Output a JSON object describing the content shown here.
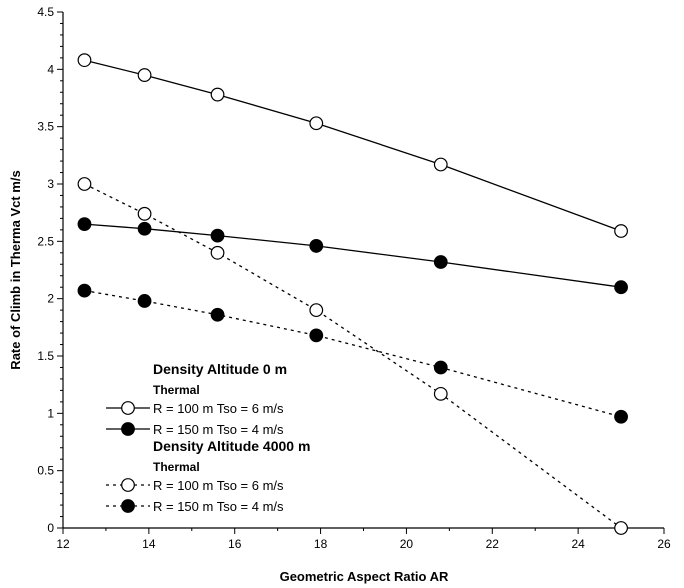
{
  "chart_data": {
    "type": "line",
    "xlabel": "Geometric Aspect Ratio AR",
    "ylabel": "Rate of Climb in Therma Vct  m/s",
    "xlim": [
      12,
      26
    ],
    "ylim": [
      0,
      4.5
    ],
    "xticks": [
      "12",
      "14",
      "16",
      "18",
      "20",
      "22",
      "24",
      "26"
    ],
    "yticks": [
      "0",
      "0.5",
      "1",
      "1.5",
      "2",
      "2.5",
      "3",
      "3.5",
      "4",
      "4.5"
    ],
    "grid": false,
    "legend_position": "lower-left",
    "series": [
      {
        "name": "R = 100 m Tso = 6 m/s",
        "group": 0,
        "marker": "open",
        "line": "solid",
        "x": [
          12.5,
          13.9,
          15.6,
          17.9,
          20.8,
          25
        ],
        "y": [
          4.08,
          3.95,
          3.78,
          3.53,
          3.17,
          2.59
        ]
      },
      {
        "name": "R = 150 m Tso = 4 m/s",
        "group": 0,
        "marker": "filled",
        "line": "solid",
        "x": [
          12.5,
          13.9,
          15.6,
          17.9,
          20.8,
          25
        ],
        "y": [
          2.65,
          2.61,
          2.55,
          2.46,
          2.32,
          2.1
        ]
      },
      {
        "name": "R = 100 m Tso = 6 m/s",
        "group": 1,
        "marker": "open",
        "line": "dotted",
        "x": [
          12.5,
          13.9,
          15.6,
          17.9,
          20.8,
          25
        ],
        "y": [
          3.0,
          2.74,
          2.4,
          1.9,
          1.17,
          0.0
        ]
      },
      {
        "name": "R = 150 m Tso = 4 m/s",
        "group": 1,
        "marker": "filled",
        "line": "dotted",
        "x": [
          12.5,
          13.9,
          15.6,
          17.9,
          20.8,
          25
        ],
        "y": [
          2.07,
          1.98,
          1.86,
          1.68,
          1.4,
          0.97
        ]
      }
    ],
    "legend_groups": [
      {
        "heading": "Density Altitude 0 m",
        "subheading": "Thermal"
      },
      {
        "heading": "Density Altitude 4000 m",
        "subheading": "Thermal"
      }
    ]
  }
}
